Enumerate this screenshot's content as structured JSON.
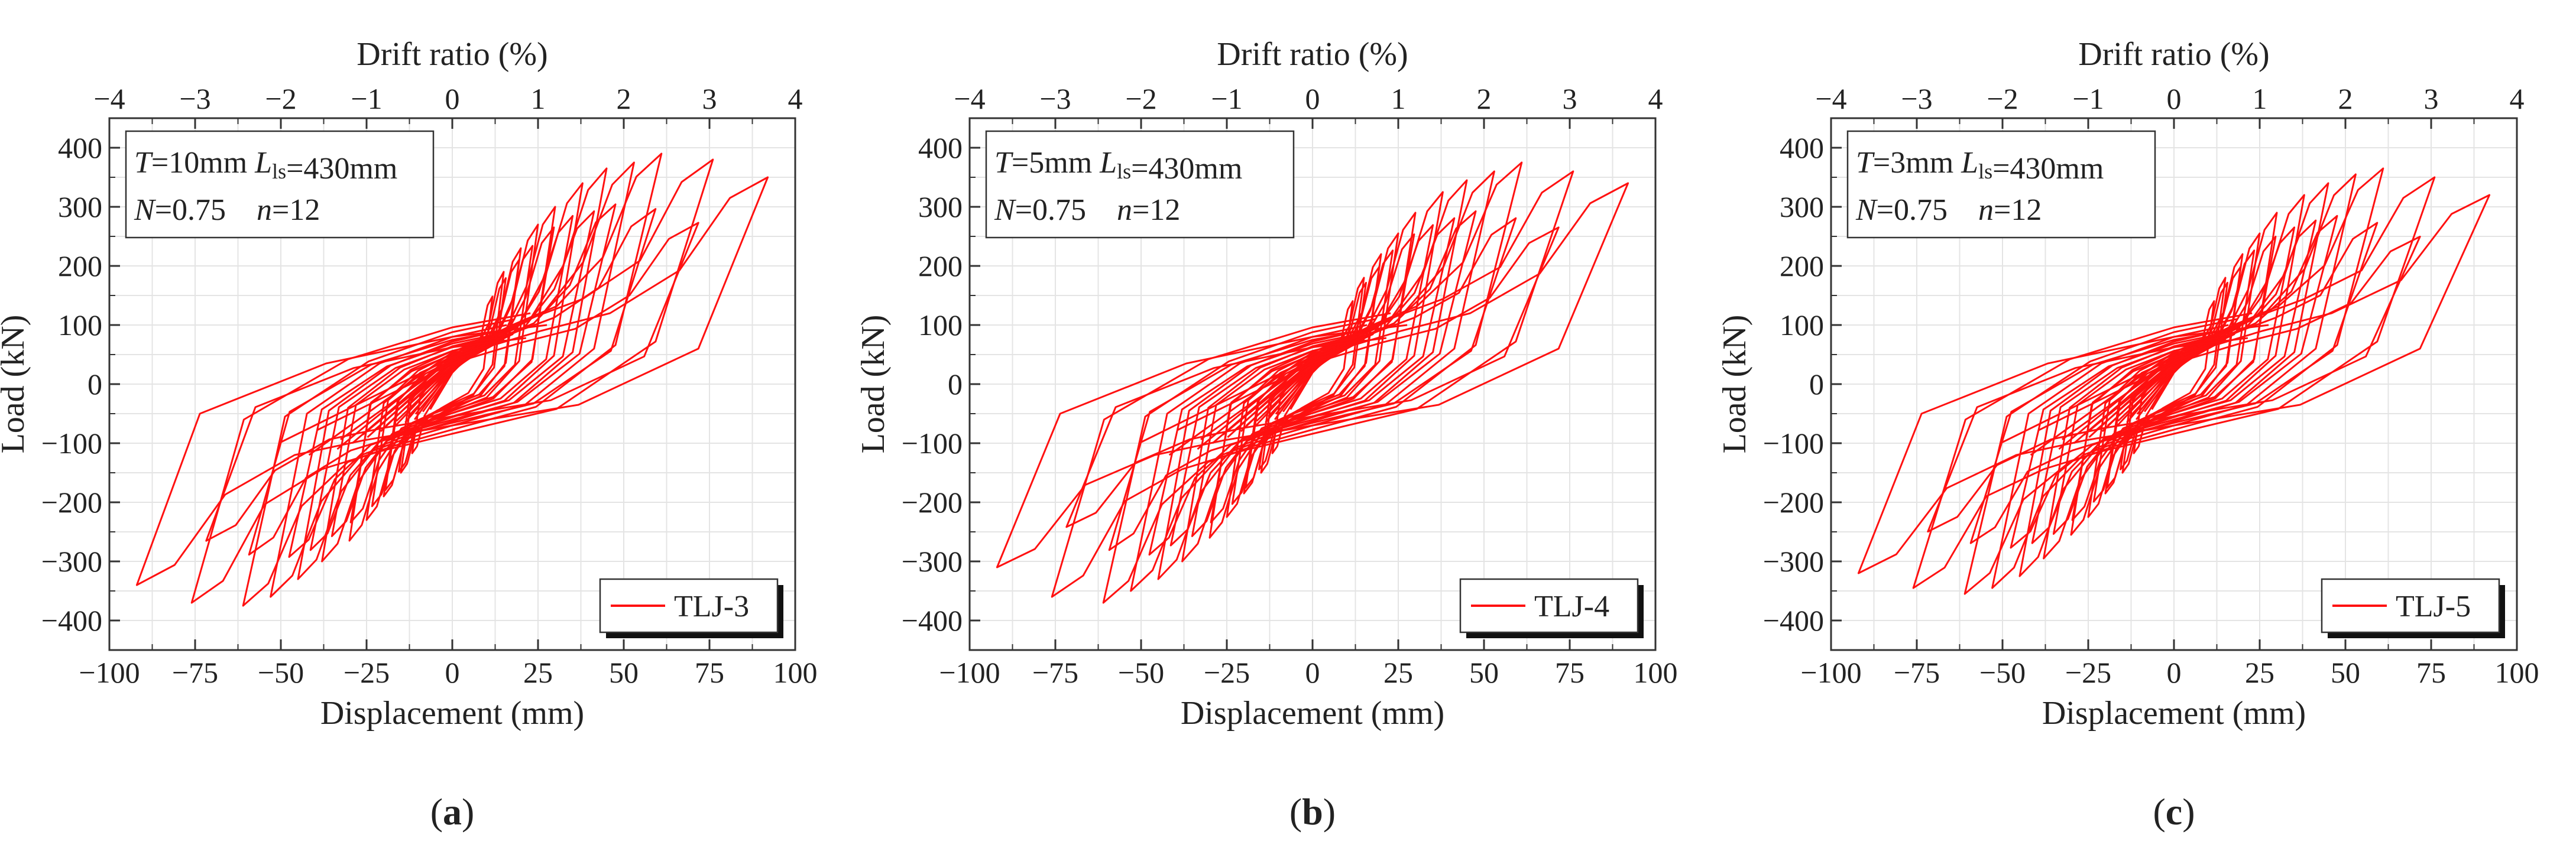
{
  "figure": {
    "panel_labels": [
      "(a)",
      "(b)",
      "(c)"
    ],
    "colors": {
      "curve": "#ff1111",
      "axes": "#333333",
      "grid": "#e4e4e4",
      "text": "#222222"
    }
  },
  "chart_data": [
    {
      "type": "line",
      "panel": "(a)",
      "title": "",
      "xlabel": "Displacement (mm)",
      "ylabel": "Load (kN)",
      "top_xlabel": "Drift ratio (%)",
      "xlim": [
        -100,
        100
      ],
      "ylim": [
        -450,
        450
      ],
      "top_xlim": [
        -4,
        4
      ],
      "x_ticks": [
        "−100",
        "−75",
        "−50",
        "−25",
        "0",
        "25",
        "50",
        "75",
        "100"
      ],
      "y_ticks": [
        "−400",
        "−300",
        "−200",
        "−100",
        "0",
        "100",
        "200",
        "300",
        "400"
      ],
      "top_ticks": [
        "−4",
        "−3",
        "−2",
        "−1",
        "0",
        "1",
        "2",
        "3",
        "4"
      ],
      "grid": true,
      "annotation": {
        "line1": [
          {
            "t": "T",
            "i": true
          },
          {
            "t": "=10mm "
          },
          {
            "t": "L",
            "i": true
          },
          {
            "t": "ls",
            "sub": true
          },
          {
            "t": "=430mm"
          }
        ],
        "line2": [
          {
            "t": "N",
            "i": true
          },
          {
            "t": "=0.75    "
          },
          {
            "t": "n",
            "i": true
          },
          {
            "t": "=12"
          }
        ]
      },
      "legend": {
        "label": "TLJ-3",
        "position": "bottom-right"
      },
      "series": [
        {
          "name": "TLJ-3",
          "loops": [
            {
              "amplitude": 15,
              "peak_pos": 190,
              "peak_neg": -150,
              "pinch": 55
            },
            {
              "amplitude": 20,
              "peak_pos": 230,
              "peak_neg": -190,
              "pinch": 60
            },
            {
              "amplitude": 25,
              "peak_pos": 270,
              "peak_neg": -230,
              "pinch": 65
            },
            {
              "amplitude": 30,
              "peak_pos": 300,
              "peak_neg": -265,
              "pinch": 70
            },
            {
              "amplitude": 38,
              "peak_pos": 340,
              "peak_neg": -300,
              "pinch": 80
            },
            {
              "amplitude": 45,
              "peak_pos": 365,
              "peak_neg": -330,
              "pinch": 90
            },
            {
              "amplitude": 53,
              "peak_pos": 375,
              "peak_neg": -360,
              "pinch": 100
            },
            {
              "amplitude": 61,
              "peak_pos": 390,
              "peak_neg": -375,
              "pinch": 110
            },
            {
              "amplitude": 76,
              "peak_pos": 380,
              "peak_neg": -370,
              "pinch": 120
            },
            {
              "amplitude": 92,
              "peak_pos": 350,
              "peak_neg": -340,
              "pinch": 100
            }
          ]
        }
      ]
    },
    {
      "type": "line",
      "panel": "(b)",
      "title": "",
      "xlabel": "Displacement (mm)",
      "ylabel": "Load (kN)",
      "top_xlabel": "Drift ratio (%)",
      "xlim": [
        -100,
        100
      ],
      "ylim": [
        -450,
        450
      ],
      "top_xlim": [
        -4,
        4
      ],
      "x_ticks": [
        "−100",
        "−75",
        "−50",
        "−25",
        "0",
        "25",
        "50",
        "75",
        "100"
      ],
      "y_ticks": [
        "−400",
        "−300",
        "−200",
        "−100",
        "0",
        "100",
        "200",
        "300",
        "400"
      ],
      "top_ticks": [
        "−4",
        "−3",
        "−2",
        "−1",
        "0",
        "1",
        "2",
        "3",
        "4"
      ],
      "grid": true,
      "annotation": {
        "line1": [
          {
            "t": "T",
            "i": true
          },
          {
            "t": "=5mm "
          },
          {
            "t": "L",
            "i": true
          },
          {
            "t": "ls",
            "sub": true
          },
          {
            "t": "=430mm"
          }
        ],
        "line2": [
          {
            "t": "N",
            "i": true
          },
          {
            "t": "=0.75    "
          },
          {
            "t": "n",
            "i": true
          },
          {
            "t": "=12"
          }
        ]
      },
      "legend": {
        "label": "TLJ-4",
        "position": "bottom-right"
      },
      "series": [
        {
          "name": "TLJ-4",
          "loops": [
            {
              "amplitude": 15,
              "peak_pos": 180,
              "peak_neg": -150,
              "pinch": 55
            },
            {
              "amplitude": 20,
              "peak_pos": 220,
              "peak_neg": -185,
              "pinch": 60
            },
            {
              "amplitude": 25,
              "peak_pos": 255,
              "peak_neg": -225,
              "pinch": 65
            },
            {
              "amplitude": 30,
              "peak_pos": 290,
              "peak_neg": -260,
              "pinch": 70
            },
            {
              "amplitude": 38,
              "peak_pos": 325,
              "peak_neg": -300,
              "pinch": 80
            },
            {
              "amplitude": 45,
              "peak_pos": 345,
              "peak_neg": -330,
              "pinch": 90
            },
            {
              "amplitude": 53,
              "peak_pos": 360,
              "peak_neg": -350,
              "pinch": 100
            },
            {
              "amplitude": 61,
              "peak_pos": 375,
              "peak_neg": -370,
              "pinch": 110
            },
            {
              "amplitude": 76,
              "peak_pos": 360,
              "peak_neg": -360,
              "pinch": 120
            },
            {
              "amplitude": 92,
              "peak_pos": 340,
              "peak_neg": -310,
              "pinch": 100
            }
          ]
        }
      ]
    },
    {
      "type": "line",
      "panel": "(c)",
      "title": "",
      "xlabel": "Displacement (mm)",
      "ylabel": "Load (kN)",
      "top_xlabel": "Drift ratio (%)",
      "xlim": [
        -100,
        100
      ],
      "ylim": [
        -450,
        450
      ],
      "top_xlim": [
        -4,
        4
      ],
      "x_ticks": [
        "−100",
        "−75",
        "−50",
        "−25",
        "0",
        "25",
        "50",
        "75",
        "100"
      ],
      "y_ticks": [
        "−400",
        "−300",
        "−200",
        "−100",
        "0",
        "100",
        "200",
        "300",
        "400"
      ],
      "top_ticks": [
        "−4",
        "−3",
        "−2",
        "−1",
        "0",
        "1",
        "2",
        "3",
        "4"
      ],
      "grid": true,
      "annotation": {
        "line1": [
          {
            "t": "T",
            "i": true
          },
          {
            "t": "=3mm "
          },
          {
            "t": "L",
            "i": true
          },
          {
            "t": "ls",
            "sub": true
          },
          {
            "t": "=430mm"
          }
        ],
        "line2": [
          {
            "t": "N",
            "i": true
          },
          {
            "t": "=0.75    "
          },
          {
            "t": "n",
            "i": true
          },
          {
            "t": "=12"
          }
        ]
      },
      "legend": {
        "label": "TLJ-5",
        "position": "bottom-right"
      },
      "series": [
        {
          "name": "TLJ-5",
          "loops": [
            {
              "amplitude": 15,
              "peak_pos": 180,
              "peak_neg": -150,
              "pinch": 55
            },
            {
              "amplitude": 20,
              "peak_pos": 220,
              "peak_neg": -185,
              "pinch": 60
            },
            {
              "amplitude": 25,
              "peak_pos": 255,
              "peak_neg": -225,
              "pinch": 65
            },
            {
              "amplitude": 30,
              "peak_pos": 290,
              "peak_neg": -255,
              "pinch": 70
            },
            {
              "amplitude": 38,
              "peak_pos": 320,
              "peak_neg": -295,
              "pinch": 80
            },
            {
              "amplitude": 45,
              "peak_pos": 340,
              "peak_neg": -325,
              "pinch": 90
            },
            {
              "amplitude": 53,
              "peak_pos": 355,
              "peak_neg": -345,
              "pinch": 100
            },
            {
              "amplitude": 61,
              "peak_pos": 365,
              "peak_neg": -355,
              "pinch": 110
            },
            {
              "amplitude": 76,
              "peak_pos": 350,
              "peak_neg": -345,
              "pinch": 120
            },
            {
              "amplitude": 92,
              "peak_pos": 320,
              "peak_neg": -320,
              "pinch": 100
            }
          ]
        }
      ]
    }
  ]
}
